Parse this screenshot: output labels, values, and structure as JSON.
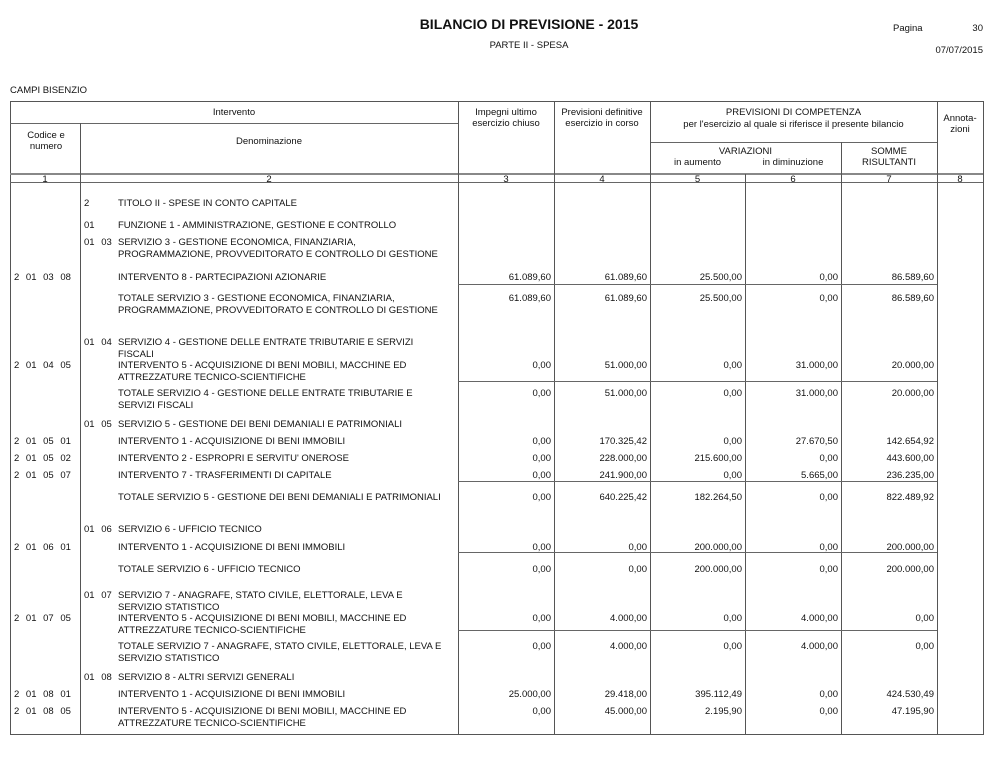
{
  "header": {
    "title": "BILANCIO DI PREVISIONE - 2015",
    "subtitle": "PARTE II - SPESA",
    "page_label": "Pagina",
    "page_number": "30",
    "date": "07/07/2015",
    "ente": "CAMPI BISENZIO"
  },
  "columns": {
    "intervento": "Intervento",
    "codice": "Codice e numero",
    "denominazione": "Denominazione",
    "impegni": "Impegni ultimo esercizio chiuso",
    "previsioni": "Previsioni definitive esercizio in corso",
    "competenza": "PREVISIONI DI COMPETENZA",
    "competenza_sub": "per l'esercizio al quale si riferisce il presente bilancio",
    "variazioni": "VARIAZIONI",
    "aumento": "in aumento",
    "diminuzione": "in diminuzione",
    "somme": "SOMME RISULTANTI",
    "annotazioni": "Annota- zioni",
    "numbers": [
      "1",
      "2",
      "3",
      "4",
      "5",
      "6",
      "7",
      "8"
    ]
  },
  "rows": [
    {
      "code": "",
      "prefix": "2",
      "text": "TITOLO II - SPESE IN CONTO CAPITALE",
      "values": []
    },
    {
      "code": "",
      "prefix": "01",
      "text": "FUNZIONE 1 - AMMINISTRAZIONE, GESTIONE E CONTROLLO",
      "values": []
    },
    {
      "code": "",
      "prefix": "01 03",
      "text": "SERVIZIO 3 - GESTIONE ECONOMICA, FINANZIARIA, PROGRAMMAZIONE, PROVVEDITORATO E CONTROLLO DI GESTIONE",
      "values": []
    },
    {
      "code": "2 01 03 08",
      "prefix": "",
      "text": "INTERVENTO 8 - PARTECIPAZIONI AZIONARIE",
      "values": [
        "61.089,60",
        "61.089,60",
        "25.500,00",
        "0,00",
        "86.589,60"
      ]
    },
    {
      "code": "",
      "prefix": "",
      "text": "TOTALE SERVIZIO 3 - GESTIONE ECONOMICA, FINANZIARIA, PROGRAMMAZIONE, PROVVEDITORATO E CONTROLLO DI GESTIONE",
      "values": [
        "61.089,60",
        "61.089,60",
        "25.500,00",
        "0,00",
        "86.589,60"
      ]
    },
    {
      "code": "",
      "prefix": "01 04",
      "text": "SERVIZIO 4 - GESTIONE DELLE ENTRATE TRIBUTARIE E SERVIZI FISCALI",
      "values": []
    },
    {
      "code": "2 01 04 05",
      "prefix": "",
      "text": "INTERVENTO 5 - ACQUISIZIONE DI BENI MOBILI, MACCHINE ED ATTREZZATURE TECNICO-SCIENTIFICHE",
      "values": [
        "0,00",
        "51.000,00",
        "0,00",
        "31.000,00",
        "20.000,00"
      ]
    },
    {
      "code": "",
      "prefix": "",
      "text": "TOTALE SERVIZIO 4 - GESTIONE DELLE ENTRATE TRIBUTARIE E SERVIZI FISCALI",
      "values": [
        "0,00",
        "51.000,00",
        "0,00",
        "31.000,00",
        "20.000,00"
      ]
    },
    {
      "code": "",
      "prefix": "01 05",
      "text": "SERVIZIO 5 - GESTIONE DEI BENI DEMANIALI E PATRIMONIALI",
      "values": []
    },
    {
      "code": "2 01 05 01",
      "prefix": "",
      "text": "INTERVENTO 1 - ACQUISIZIONE DI BENI IMMOBILI",
      "values": [
        "0,00",
        "170.325,42",
        "0,00",
        "27.670,50",
        "142.654,92"
      ]
    },
    {
      "code": "2 01 05 02",
      "prefix": "",
      "text": "INTERVENTO 2 - ESPROPRI E SERVITU' ONEROSE",
      "values": [
        "0,00",
        "228.000,00",
        "215.600,00",
        "0,00",
        "443.600,00"
      ]
    },
    {
      "code": "2 01 05 07",
      "prefix": "",
      "text": "INTERVENTO 7 - TRASFERIMENTI DI CAPITALE",
      "values": [
        "0,00",
        "241.900,00",
        "0,00",
        "5.665,00",
        "236.235,00"
      ]
    },
    {
      "code": "",
      "prefix": "",
      "text": "TOTALE SERVIZIO 5 - GESTIONE DEI BENI DEMANIALI E PATRIMONIALI",
      "values": [
        "0,00",
        "640.225,42",
        "182.264,50",
        "0,00",
        "822.489,92"
      ]
    },
    {
      "code": "",
      "prefix": "01 06",
      "text": "SERVIZIO 6 - UFFICIO TECNICO",
      "values": []
    },
    {
      "code": "2 01 06 01",
      "prefix": "",
      "text": "INTERVENTO 1 - ACQUISIZIONE DI BENI IMMOBILI",
      "values": [
        "0,00",
        "0,00",
        "200.000,00",
        "0,00",
        "200.000,00"
      ]
    },
    {
      "code": "",
      "prefix": "",
      "text": "TOTALE SERVIZIO 6 - UFFICIO TECNICO",
      "values": [
        "0,00",
        "0,00",
        "200.000,00",
        "0,00",
        "200.000,00"
      ]
    },
    {
      "code": "",
      "prefix": "01 07",
      "text": "SERVIZIO 7 - ANAGRAFE, STATO CIVILE, ELETTORALE, LEVA E SERVIZIO STATISTICO",
      "values": []
    },
    {
      "code": "2 01 07 05",
      "prefix": "",
      "text": "INTERVENTO 5 - ACQUISIZIONE DI BENI MOBILI, MACCHINE ED ATTREZZATURE TECNICO-SCIENTIFICHE",
      "values": [
        "0,00",
        "4.000,00",
        "0,00",
        "4.000,00",
        "0,00"
      ]
    },
    {
      "code": "",
      "prefix": "",
      "text": "TOTALE SERVIZIO 7 - ANAGRAFE, STATO CIVILE, ELETTORALE, LEVA E SERVIZIO STATISTICO",
      "values": [
        "0,00",
        "4.000,00",
        "0,00",
        "4.000,00",
        "0,00"
      ]
    },
    {
      "code": "",
      "prefix": "01 08",
      "text": "SERVIZIO 8 - ALTRI SERVIZI GENERALI",
      "values": []
    },
    {
      "code": "2 01 08 01",
      "prefix": "",
      "text": "INTERVENTO 1 - ACQUISIZIONE DI BENI IMMOBILI",
      "values": [
        "25.000,00",
        "29.418,00",
        "395.112,49",
        "0,00",
        "424.530,49"
      ]
    },
    {
      "code": "2 01 08 05",
      "prefix": "",
      "text": "INTERVENTO 5 - ACQUISIZIONE DI BENI MOBILI, MACCHINE ED ATTREZZATURE TECNICO-SCIENTIFICHE",
      "values": [
        "0,00",
        "45.000,00",
        "2.195,90",
        "0,00",
        "47.195,90"
      ]
    }
  ]
}
